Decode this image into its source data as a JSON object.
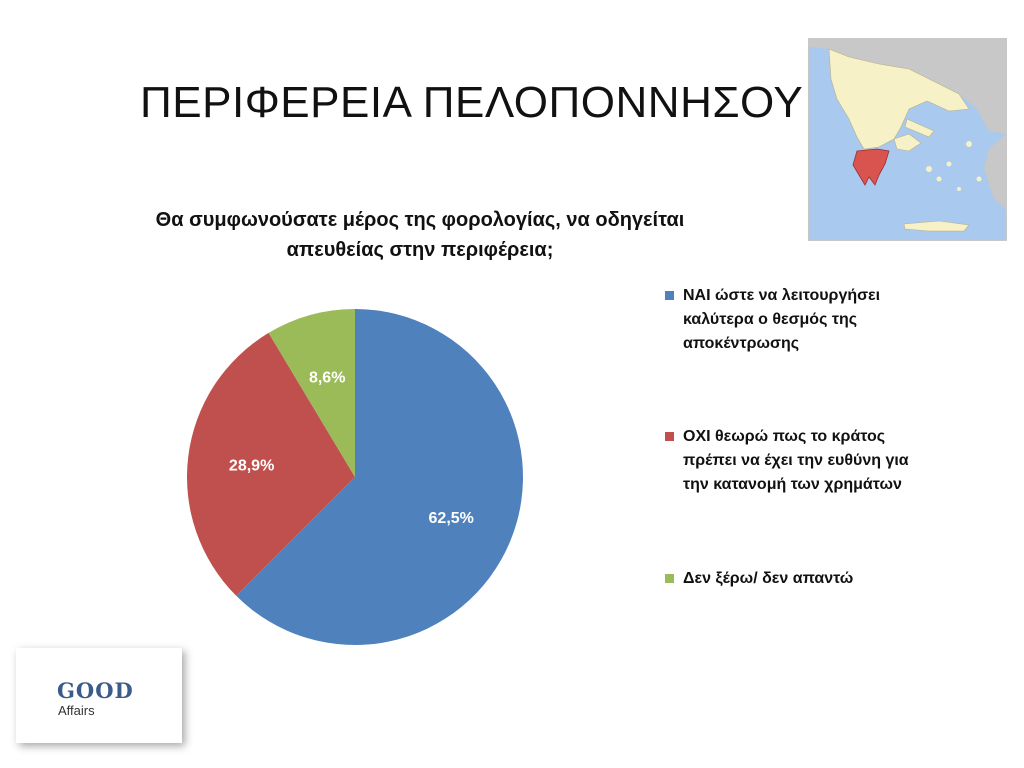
{
  "slide": {
    "title": "ΠΕΡΙΦΕΡΕΙΑ ΠΕΛΟΠΟΝΝΗΣΟΥ"
  },
  "chart_data": {
    "type": "pie",
    "title_lines": [
      "Θα συμφωνούσατε μέρος της φορολογίας, να οδηγείται",
      "απευθείας στην περιφέρεια;"
    ],
    "categories": [
      "ΝΑΙ ώστε να λειτουργήσει καλύτερα ο θεσμός της αποκέντρωσης",
      "ΟΧΙ θεωρώ πως το κράτος πρέπει να έχει την ευθύνη για την κατανομή των χρημάτων",
      "Δεν ξέρω/ δεν απαντώ"
    ],
    "values": [
      62.5,
      28.9,
      8.6
    ],
    "data_labels": [
      "62,5%",
      "28,9%",
      "8,6%"
    ],
    "colors": [
      "#4f81bd",
      "#c0504d",
      "#9bbb59"
    ],
    "legend_position": "right",
    "legend": [
      {
        "lines": [
          "ΝΑΙ ώστε να λειτουργήσει",
          "καλύτερα ο θεσμός της",
          "αποκέντρωσης"
        ]
      },
      {
        "lines": [
          "ΟΧΙ θεωρώ πως το κράτος",
          "πρέπει να έχει την ευθύνη για",
          "την κατανομή των χρημάτων"
        ]
      },
      {
        "lines": [
          "Δεν ξέρω/ δεν απαντώ"
        ]
      }
    ]
  },
  "map": {
    "highlight_color": "#d9534f",
    "sea_color": "#a9c9ee",
    "land_color": "#f7f1c8",
    "other_land_color": "#c8c8c8"
  },
  "logo": {
    "word1": "GOOD",
    "word2": "Affairs",
    "color": "#3b5b8a"
  }
}
